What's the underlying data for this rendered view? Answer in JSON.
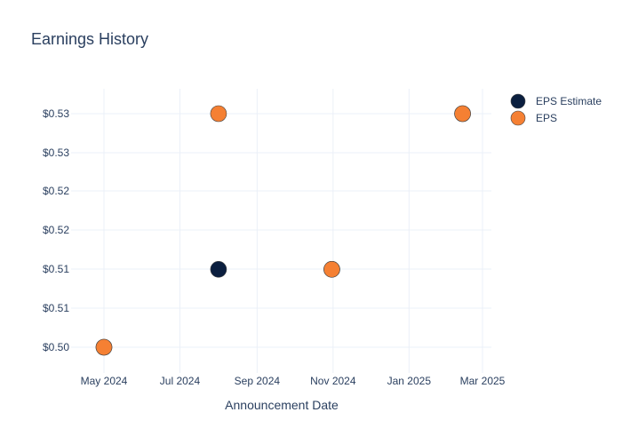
{
  "chart_data": {
    "type": "scatter",
    "title": "Earnings History",
    "xlabel": "Announcement Date",
    "ylabel": "",
    "x_ticks": [
      "May 2024",
      "Jul 2024",
      "Sep 2024",
      "Nov 2024",
      "Jan 2025",
      "Mar 2025"
    ],
    "y_ticks": [
      "$0.50",
      "$0.51",
      "$0.51",
      "$0.52",
      "$0.52",
      "$0.53",
      "$0.53"
    ],
    "grid": true,
    "legend_position": "top-right",
    "series": [
      {
        "name": "EPS Estimate",
        "color": "#0b1f3f",
        "points": [
          {
            "x": "2024-05-01",
            "y": 0.5
          },
          {
            "x": "2024-08-01",
            "y": 0.51
          },
          {
            "x": "2024-10-31",
            "y": 0.51
          },
          {
            "x": "2025-02-13",
            "y": 0.53
          }
        ]
      },
      {
        "name": "EPS",
        "color": "#f58033",
        "points": [
          {
            "x": "2024-05-01",
            "y": 0.5
          },
          {
            "x": "2024-08-01",
            "y": 0.53
          },
          {
            "x": "2024-10-31",
            "y": 0.51
          },
          {
            "x": "2025-02-13",
            "y": 0.53
          }
        ]
      }
    ]
  }
}
